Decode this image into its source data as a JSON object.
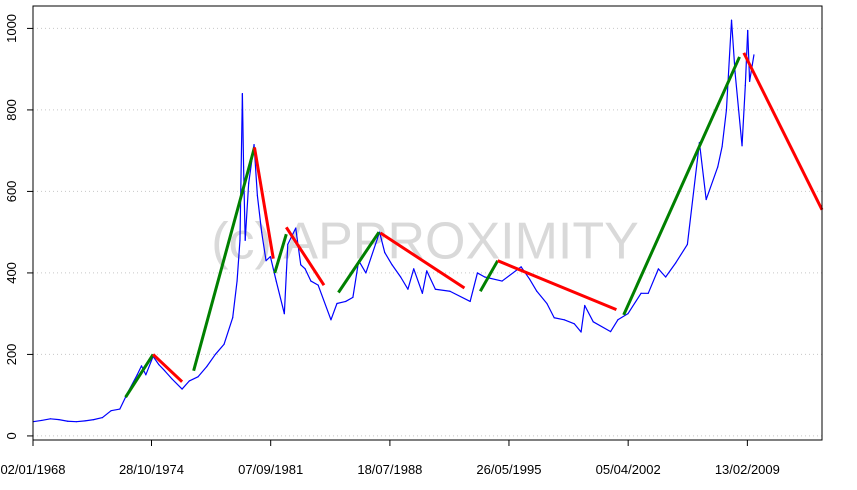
{
  "chart_data": {
    "type": "line",
    "watermark": "(c) APPROXIMITY",
    "xlim": [
      "1968-01-02",
      "2013-06-01"
    ],
    "ylim": [
      0,
      1000
    ],
    "ylim_display": [
      -10,
      1055
    ],
    "y_ticks": [
      0,
      200,
      400,
      600,
      800,
      1000
    ],
    "y_tick_labels": [
      "0",
      "200",
      "400",
      "600",
      "800",
      "1000"
    ],
    "x_ticks": [
      "1968-01-02",
      "1974-10-28",
      "1981-09-07",
      "1988-07-18",
      "1995-05-26",
      "2002-04-05",
      "2009-02-13"
    ],
    "x_tick_labels": [
      "02/01/1968",
      "28/10/1974",
      "07/09/1981",
      "18/07/1988",
      "26/05/1995",
      "05/04/2002",
      "13/02/2009"
    ],
    "grid": "horizontal-dotted",
    "colors": {
      "price": "#0000ff",
      "uptrend": "#008000",
      "downtrend": "#ff0000",
      "grid": "#c8c8c8",
      "axis": "#000000"
    },
    "series": [
      {
        "values": [
          [
            "1968-01-02",
            35
          ],
          [
            "1968-07-01",
            38
          ],
          [
            "1969-01-01",
            42
          ],
          [
            "1969-07-01",
            40
          ],
          [
            "1970-01-01",
            36
          ],
          [
            "1970-07-01",
            35
          ],
          [
            "1971-01-01",
            37
          ],
          [
            "1971-07-01",
            40
          ],
          [
            "1972-01-01",
            45
          ],
          [
            "1972-07-01",
            62
          ],
          [
            "1973-01-01",
            66
          ],
          [
            "1973-07-01",
            110
          ],
          [
            "1974-01-01",
            150
          ],
          [
            "1974-04-01",
            172
          ],
          [
            "1974-07-01",
            150
          ],
          [
            "1974-12-01",
            195
          ],
          [
            "1975-04-01",
            175
          ],
          [
            "1975-08-01",
            160
          ],
          [
            "1976-01-01",
            140
          ],
          [
            "1976-08-01",
            115
          ],
          [
            "1977-01-01",
            135
          ],
          [
            "1977-07-01",
            145
          ],
          [
            "1978-01-01",
            170
          ],
          [
            "1978-07-01",
            200
          ],
          [
            "1979-01-01",
            225
          ],
          [
            "1979-07-01",
            290
          ],
          [
            "1979-10-01",
            380
          ],
          [
            "1979-12-01",
            480
          ],
          [
            "1980-01-21",
            840
          ],
          [
            "1980-02-15",
            660
          ],
          [
            "1980-03-20",
            480
          ],
          [
            "1980-06-01",
            620
          ],
          [
            "1980-09-22",
            715
          ],
          [
            "1980-12-01",
            590
          ],
          [
            "1981-03-01",
            500
          ],
          [
            "1981-06-01",
            430
          ],
          [
            "1981-09-01",
            440
          ],
          [
            "1982-01-01",
            380
          ],
          [
            "1982-06-21",
            300
          ],
          [
            "1982-09-01",
            470
          ],
          [
            "1983-02-15",
            510
          ],
          [
            "1983-06-01",
            420
          ],
          [
            "1983-09-01",
            410
          ],
          [
            "1984-01-01",
            380
          ],
          [
            "1984-06-01",
            370
          ],
          [
            "1985-02-25",
            285
          ],
          [
            "1985-07-01",
            325
          ],
          [
            "1986-01-01",
            330
          ],
          [
            "1986-06-01",
            340
          ],
          [
            "1986-10-01",
            430
          ],
          [
            "1987-03-01",
            400
          ],
          [
            "1987-12-14",
            500
          ],
          [
            "1988-04-01",
            450
          ],
          [
            "1988-09-01",
            420
          ],
          [
            "1989-03-01",
            390
          ],
          [
            "1989-08-01",
            360
          ],
          [
            "1989-12-01",
            410
          ],
          [
            "1990-06-01",
            350
          ],
          [
            "1990-09-01",
            405
          ],
          [
            "1991-03-01",
            360
          ],
          [
            "1992-01-01",
            355
          ],
          [
            "1993-03-01",
            330
          ],
          [
            "1993-08-01",
            400
          ],
          [
            "1994-01-01",
            390
          ],
          [
            "1995-01-01",
            380
          ],
          [
            "1996-02-05",
            415
          ],
          [
            "1996-08-01",
            385
          ],
          [
            "1997-01-01",
            355
          ],
          [
            "1997-08-01",
            325
          ],
          [
            "1998-01-01",
            290
          ],
          [
            "1998-08-01",
            285
          ],
          [
            "1999-03-01",
            275
          ],
          [
            "1999-07-20",
            255
          ],
          [
            "1999-10-05",
            320
          ],
          [
            "2000-04-01",
            280
          ],
          [
            "2001-04-01",
            256
          ],
          [
            "2001-09-01",
            285
          ],
          [
            "2002-04-01",
            300
          ],
          [
            "2003-01-01",
            350
          ],
          [
            "2003-06-01",
            350
          ],
          [
            "2004-01-01",
            410
          ],
          [
            "2004-06-01",
            390
          ],
          [
            "2005-01-01",
            425
          ],
          [
            "2005-09-01",
            470
          ],
          [
            "2006-05-12",
            720
          ],
          [
            "2006-10-01",
            580
          ],
          [
            "2007-06-01",
            660
          ],
          [
            "2007-09-01",
            710
          ],
          [
            "2007-12-01",
            800
          ],
          [
            "2008-03-17",
            1020
          ],
          [
            "2008-06-01",
            890
          ],
          [
            "2008-10-24",
            712
          ],
          [
            "2009-01-01",
            860
          ],
          [
            "2009-02-20",
            995
          ],
          [
            "2009-04-01",
            870
          ],
          [
            "2009-07-01",
            935
          ]
        ]
      }
    ],
    "trend_lines": [
      {
        "direction": "up",
        "from": [
          "1973-05-01",
          95
        ],
        "to": [
          "1974-12-01",
          200
        ]
      },
      {
        "direction": "down",
        "from": [
          "1974-12-01",
          200
        ],
        "to": [
          "1976-08-01",
          133
        ]
      },
      {
        "direction": "up",
        "from": [
          "1977-04-01",
          160
        ],
        "to": [
          "1980-10-01",
          708
        ]
      },
      {
        "direction": "down",
        "from": [
          "1980-10-01",
          708
        ],
        "to": [
          "1981-11-01",
          435
        ]
      },
      {
        "direction": "up",
        "from": [
          "1981-12-01",
          400
        ],
        "to": [
          "1982-08-01",
          495
        ]
      },
      {
        "direction": "down",
        "from": [
          "1982-08-01",
          512
        ],
        "to": [
          "1984-10-01",
          370
        ]
      },
      {
        "direction": "up",
        "from": [
          "1985-08-01",
          352
        ],
        "to": [
          "1987-12-01",
          500
        ]
      },
      {
        "direction": "down",
        "from": [
          "1988-01-01",
          498
        ],
        "to": [
          "1992-11-01",
          363
        ]
      },
      {
        "direction": "up",
        "from": [
          "1993-10-01",
          355
        ],
        "to": [
          "1994-10-01",
          430
        ]
      },
      {
        "direction": "down",
        "from": [
          "1994-10-01",
          430
        ],
        "to": [
          "2001-08-01",
          310
        ]
      },
      {
        "direction": "up",
        "from": [
          "2002-01-01",
          297
        ],
        "to": [
          "2008-09-01",
          930
        ]
      },
      {
        "direction": "down",
        "from": [
          "2008-12-01",
          940
        ],
        "to": [
          "2013-06-01",
          555
        ]
      }
    ]
  }
}
